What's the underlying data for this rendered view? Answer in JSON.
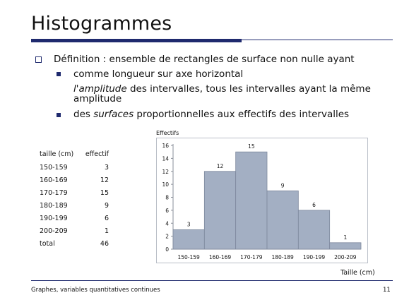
{
  "slide": {
    "title": "Histogrammes",
    "bullets": {
      "b1": "Définition : ensemble de rectangles de surface non nulle ayant",
      "b2": "comme longueur sur axe horizontal",
      "b2_cont_italic": "l'amplitude",
      "b2_cont_rest": " des intervalles,  tous les intervalles ayant la même",
      "b2_cont_line2": "amplitude",
      "b3_pre": "des ",
      "b3_italic": "surfaces",
      "b3_post": " proportionnelles aux effectifs des intervalles"
    },
    "footer": {
      "left": "Graphes, variables quantitatives continues",
      "page": "11"
    },
    "colors": {
      "accent": "#1f2a6e",
      "bar": "#a3afc3",
      "bar_stroke": "#7c879c"
    }
  },
  "table": {
    "headers": [
      "taille (cm)",
      "effectif"
    ],
    "rows": [
      [
        "150-159",
        "3"
      ],
      [
        "160-169",
        "12"
      ],
      [
        "170-179",
        "15"
      ],
      [
        "180-189",
        "9"
      ],
      [
        "190-199",
        "6"
      ],
      [
        "200-209",
        "1"
      ],
      [
        "total",
        "46"
      ]
    ]
  },
  "chart_data": {
    "type": "bar",
    "title": "",
    "ylabel": "Effectifs",
    "xlabel": "Taille (cm)",
    "categories": [
      "150-159",
      "160-169",
      "170-179",
      "180-189",
      "190-199",
      "200-209"
    ],
    "values": [
      3,
      12,
      15,
      9,
      6,
      1
    ],
    "ylim": [
      0,
      16
    ],
    "yticks": [
      "0",
      "2",
      "4",
      "6",
      "8",
      "10",
      "12",
      "14",
      "16"
    ],
    "grid": false,
    "legend": "none"
  }
}
